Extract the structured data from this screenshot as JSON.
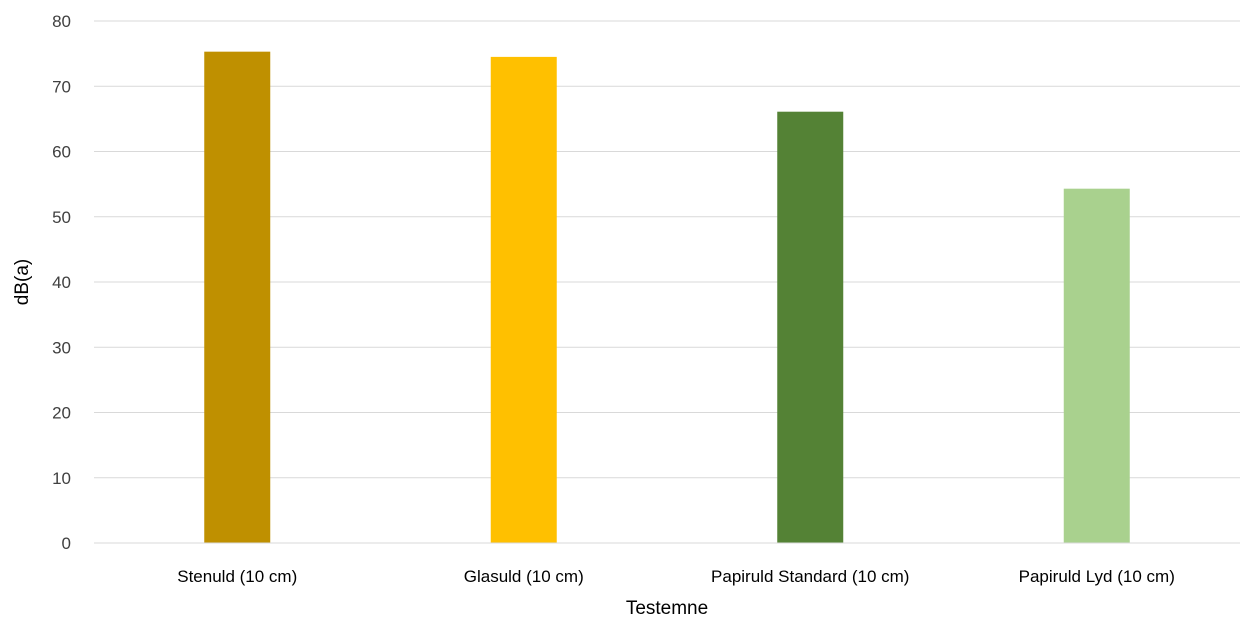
{
  "chart_data": {
    "type": "bar",
    "title": "",
    "xlabel": "Testemne",
    "ylabel": "dB(a)",
    "categories": [
      "Stenuld (10 cm)",
      "Glasuld (10 cm)",
      "Papiruld Standard (10 cm)",
      "Papiruld Lyd (10 cm)"
    ],
    "values": [
      75.3,
      74.5,
      66.1,
      54.3
    ],
    "bar_colors": [
      "#bf9000",
      "#ffc000",
      "#548235",
      "#a9d18e"
    ],
    "ylim": [
      0,
      80
    ],
    "yticks": [
      0,
      10,
      20,
      30,
      40,
      50,
      60,
      70,
      80
    ],
    "grid": true,
    "gridline_color": "#d9d9d9",
    "legend": "none"
  }
}
